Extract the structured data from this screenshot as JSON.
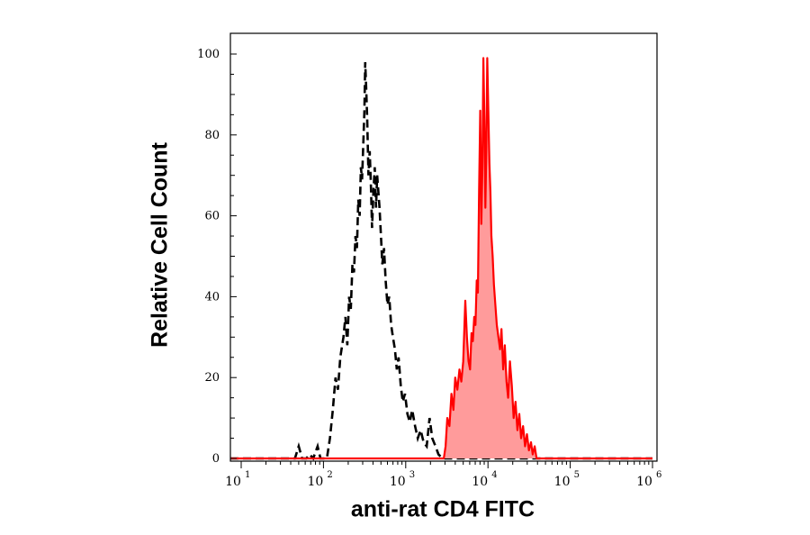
{
  "chart_data": {
    "type": "area",
    "xlabel": "anti-rat CD4 FITC",
    "ylabel": "Relative Cell Count",
    "x_scale": "log",
    "xlim": [
      5,
      1000000
    ],
    "ylim": [
      0,
      100
    ],
    "y_ticks": [
      "0",
      "20",
      "40",
      "60",
      "80",
      "100"
    ],
    "x_ticks": [
      {
        "base": "10",
        "exp": "1",
        "value": 10
      },
      {
        "base": "10",
        "exp": "2",
        "value": 100
      },
      {
        "base": "10",
        "exp": "3",
        "value": 1000
      },
      {
        "base": "10",
        "exp": "4",
        "value": 10000
      },
      {
        "base": "10",
        "exp": "5",
        "value": 100000
      },
      {
        "base": "10",
        "exp": "6",
        "value": 1000000
      }
    ],
    "series": [
      {
        "style": "dashed-line",
        "color": "#000000",
        "points": [
          [
            5,
            0
          ],
          [
            45,
            0
          ],
          [
            50,
            3
          ],
          [
            55,
            0
          ],
          [
            62,
            0
          ],
          [
            68,
            1
          ],
          [
            75,
            0
          ],
          [
            85,
            3
          ],
          [
            92,
            0
          ],
          [
            110,
            0
          ],
          [
            120,
            5
          ],
          [
            130,
            12
          ],
          [
            140,
            20
          ],
          [
            150,
            17
          ],
          [
            160,
            25
          ],
          [
            175,
            30
          ],
          [
            185,
            35
          ],
          [
            195,
            28
          ],
          [
            205,
            40
          ],
          [
            215,
            37
          ],
          [
            225,
            48
          ],
          [
            235,
            46
          ],
          [
            245,
            55
          ],
          [
            255,
            52
          ],
          [
            265,
            64
          ],
          [
            275,
            60
          ],
          [
            285,
            72
          ],
          [
            295,
            69
          ],
          [
            305,
            78
          ],
          [
            315,
            86
          ],
          [
            322,
            98
          ],
          [
            330,
            92
          ],
          [
            340,
            84
          ],
          [
            352,
            70
          ],
          [
            365,
            76
          ],
          [
            378,
            67
          ],
          [
            390,
            57
          ],
          [
            405,
            66
          ],
          [
            420,
            72
          ],
          [
            435,
            62
          ],
          [
            450,
            70
          ],
          [
            465,
            66
          ],
          [
            480,
            62
          ],
          [
            500,
            55
          ],
          [
            520,
            48
          ],
          [
            545,
            52
          ],
          [
            570,
            44
          ],
          [
            600,
            38
          ],
          [
            630,
            40
          ],
          [
            665,
            33
          ],
          [
            700,
            30
          ],
          [
            740,
            27
          ],
          [
            780,
            22
          ],
          [
            820,
            25
          ],
          [
            870,
            18
          ],
          [
            920,
            14
          ],
          [
            980,
            16
          ],
          [
            1050,
            11
          ],
          [
            1120,
            9
          ],
          [
            1200,
            12
          ],
          [
            1300,
            8
          ],
          [
            1400,
            5
          ],
          [
            1520,
            7
          ],
          [
            1650,
            4
          ],
          [
            1800,
            3
          ],
          [
            1950,
            10
          ],
          [
            2100,
            5
          ],
          [
            2300,
            3
          ],
          [
            2500,
            1
          ],
          [
            2800,
            0
          ],
          [
            1000000,
            0
          ]
        ]
      },
      {
        "style": "filled",
        "color": "#ff0000",
        "fill": "#ff9b9b",
        "points": [
          [
            5,
            0
          ],
          [
            2900,
            0
          ],
          [
            3050,
            3
          ],
          [
            3200,
            10
          ],
          [
            3400,
            8
          ],
          [
            3600,
            16
          ],
          [
            3800,
            12
          ],
          [
            4000,
            20
          ],
          [
            4250,
            17
          ],
          [
            4500,
            22
          ],
          [
            4750,
            19
          ],
          [
            5000,
            24
          ],
          [
            5300,
            39
          ],
          [
            5550,
            30
          ],
          [
            5800,
            24
          ],
          [
            6050,
            22
          ],
          [
            6300,
            31
          ],
          [
            6550,
            29
          ],
          [
            6800,
            35
          ],
          [
            7050,
            33
          ],
          [
            7300,
            44
          ],
          [
            7550,
            41
          ],
          [
            7800,
            66
          ],
          [
            8050,
            86
          ],
          [
            8300,
            58
          ],
          [
            8550,
            72
          ],
          [
            8800,
            99
          ],
          [
            9050,
            84
          ],
          [
            9300,
            62
          ],
          [
            9550,
            77
          ],
          [
            9800,
            99
          ],
          [
            10100,
            86
          ],
          [
            10400,
            73
          ],
          [
            10700,
            66
          ],
          [
            11000,
            55
          ],
          [
            11400,
            50
          ],
          [
            11800,
            43
          ],
          [
            12300,
            38
          ],
          [
            12800,
            33
          ],
          [
            13400,
            30
          ],
          [
            14000,
            27
          ],
          [
            14600,
            32
          ],
          [
            15300,
            22
          ],
          [
            16000,
            28
          ],
          [
            16800,
            19
          ],
          [
            17600,
            15
          ],
          [
            18500,
            24
          ],
          [
            19500,
            18
          ],
          [
            20500,
            10
          ],
          [
            21600,
            14
          ],
          [
            22800,
            7
          ],
          [
            24000,
            11
          ],
          [
            25300,
            5
          ],
          [
            26700,
            8
          ],
          [
            28200,
            3
          ],
          [
            29800,
            6
          ],
          [
            31500,
            2
          ],
          [
            33300,
            4
          ],
          [
            35000,
            1
          ],
          [
            37000,
            3
          ],
          [
            39000,
            0
          ],
          [
            1000000,
            0
          ]
        ]
      }
    ]
  }
}
